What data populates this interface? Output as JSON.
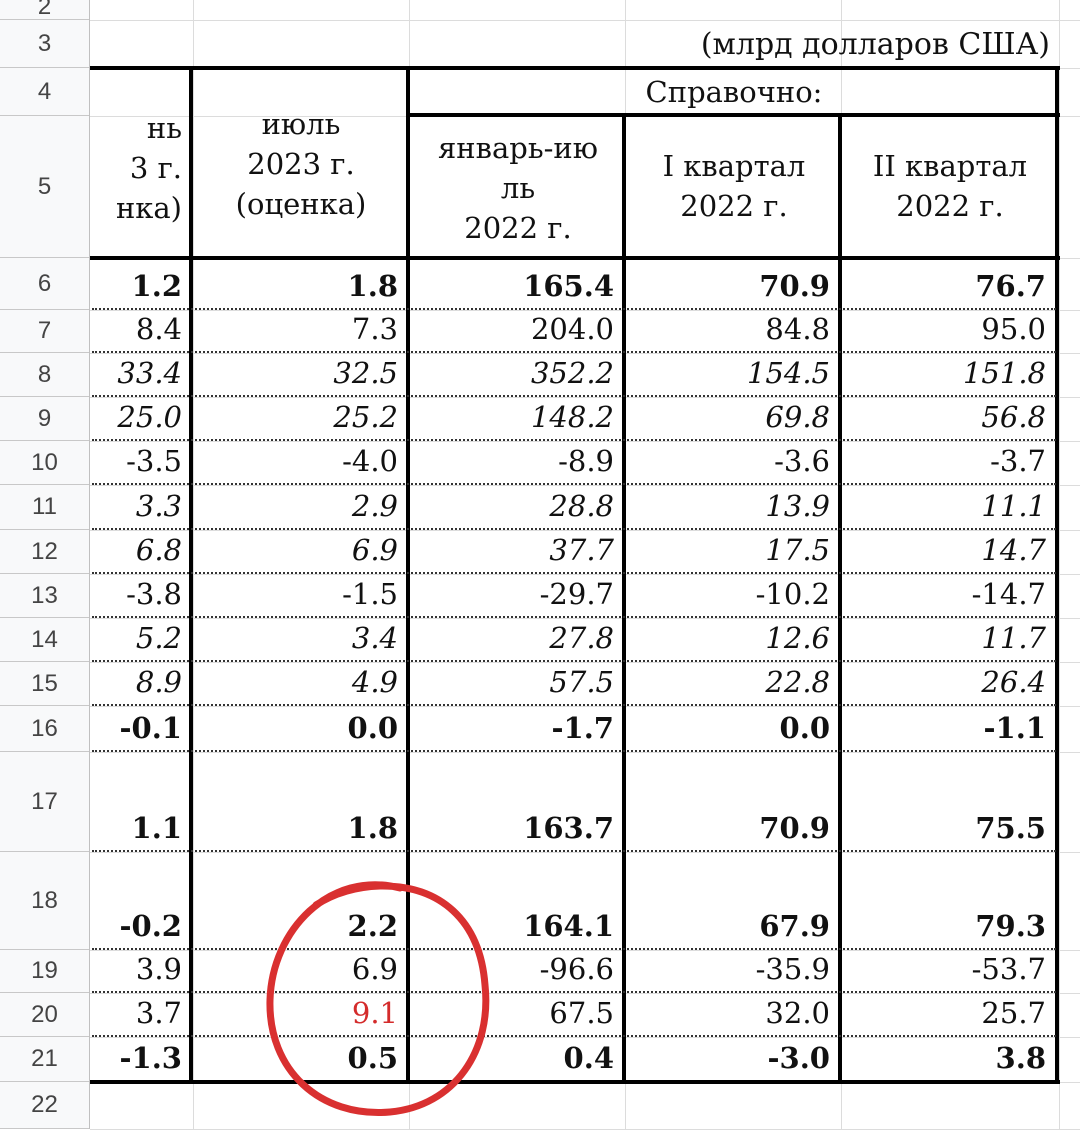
{
  "units_note": "(млрд долларов США)",
  "row_numbers": [
    "2",
    "3",
    "4",
    "5",
    "6",
    "7",
    "8",
    "9",
    "10",
    "11",
    "12",
    "13",
    "14",
    "15",
    "16",
    "17",
    "18",
    "19",
    "20",
    "21",
    "22"
  ],
  "header": {
    "col1_partial": [
      "нь",
      "3 г.",
      "нка)"
    ],
    "col2": [
      "июль",
      "2023 г.",
      "(оценка)"
    ],
    "spravochno": "Справочно:",
    "col3": [
      "январь-ию",
      "ль",
      "2022 г."
    ],
    "col4": [
      "I квартал",
      "2022 г."
    ],
    "col5": [
      "II квартал",
      "2022 г."
    ]
  },
  "rows": [
    {
      "style": "b",
      "values": [
        "1.2",
        "1.8",
        "165.4",
        "70.9",
        "76.7"
      ]
    },
    {
      "style": "n",
      "values": [
        "8.4",
        "7.3",
        "204.0",
        "84.8",
        "95.0"
      ]
    },
    {
      "style": "i",
      "values": [
        "33.4",
        "32.5",
        "352.2",
        "154.5",
        "151.8"
      ]
    },
    {
      "style": "i",
      "values": [
        "25.0",
        "25.2",
        "148.2",
        "69.8",
        "56.8"
      ]
    },
    {
      "style": "n",
      "values": [
        "-3.5",
        "-4.0",
        "-8.9",
        "-3.6",
        "-3.7"
      ]
    },
    {
      "style": "i",
      "values": [
        "3.3",
        "2.9",
        "28.8",
        "13.9",
        "11.1"
      ]
    },
    {
      "style": "i",
      "values": [
        "6.8",
        "6.9",
        "37.7",
        "17.5",
        "14.7"
      ]
    },
    {
      "style": "n",
      "values": [
        "-3.8",
        "-1.5",
        "-29.7",
        "-10.2",
        "-14.7"
      ]
    },
    {
      "style": "i",
      "values": [
        "5.2",
        "3.4",
        "27.8",
        "12.6",
        "11.7"
      ]
    },
    {
      "style": "i",
      "values": [
        "8.9",
        "4.9",
        "57.5",
        "22.8",
        "26.4"
      ]
    },
    {
      "style": "b",
      "values": [
        "-0.1",
        "0.0",
        "-1.7",
        "0.0",
        "-1.1"
      ]
    },
    {
      "style": "b",
      "values": [
        "1.1",
        "1.8",
        "163.7",
        "70.9",
        "75.5"
      ]
    },
    {
      "style": "b",
      "values": [
        "-0.2",
        "2.2",
        "164.1",
        "67.9",
        "79.3"
      ]
    },
    {
      "style": "n",
      "values": [
        "3.9",
        "6.9",
        "-96.6",
        "-35.9",
        "-53.7"
      ]
    },
    {
      "style": "n",
      "values": [
        "3.7",
        "9.1",
        "67.5",
        "32.0",
        "25.7"
      ]
    },
    {
      "style": "b",
      "values": [
        "-1.3",
        "0.5",
        "0.4",
        "-3.0",
        "3.8"
      ]
    }
  ],
  "highlight": {
    "row_index": 14,
    "col_index": 1,
    "color": "#d42b2b"
  },
  "annotation_color": "#d93030"
}
